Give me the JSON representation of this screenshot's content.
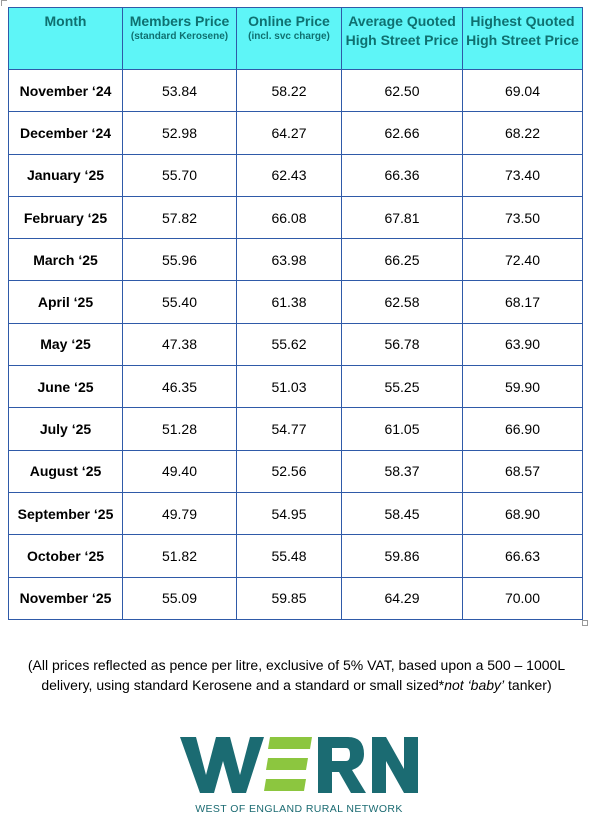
{
  "table": {
    "headers": [
      {
        "label": "Month",
        "sub": ""
      },
      {
        "label": "Members Price",
        "sub": "(standard Kerosene)"
      },
      {
        "label": "Online Price",
        "sub": "(incl. svc charge)"
      },
      {
        "label": "Average Quoted High Street Price",
        "sub": ""
      },
      {
        "label": "Highest Quoted High Street Price",
        "sub": ""
      }
    ],
    "rows": [
      {
        "month": "November ‘24",
        "members": "53.84",
        "online": "58.22",
        "average": "62.50",
        "highest": "69.04"
      },
      {
        "month": "December ‘24",
        "members": "52.98",
        "online": "64.27",
        "average": "62.66",
        "highest": "68.22"
      },
      {
        "month": "January ‘25",
        "members": "55.70",
        "online": "62.43",
        "average": "66.36",
        "highest": "73.40"
      },
      {
        "month": "February ‘25",
        "members": "57.82",
        "online": "66.08",
        "average": "67.81",
        "highest": "73.50"
      },
      {
        "month": "March ‘25",
        "members": "55.96",
        "online": "63.98",
        "average": "66.25",
        "highest": "72.40"
      },
      {
        "month": "April ‘25",
        "members": "55.40",
        "online": "61.38",
        "average": "62.58",
        "highest": "68.17"
      },
      {
        "month": "May ‘25",
        "members": "47.38",
        "online": "55.62",
        "average": "56.78",
        "highest": "63.90"
      },
      {
        "month": "June ‘25",
        "members": "46.35",
        "online": "51.03",
        "average": "55.25",
        "highest": "59.90"
      },
      {
        "month": "July ‘25",
        "members": "51.28",
        "online": "54.77",
        "average": "61.05",
        "highest": "66.90"
      },
      {
        "month": "August ‘25",
        "members": "49.40",
        "online": "52.56",
        "average": "58.37",
        "highest": "68.57"
      },
      {
        "month": "September ‘25",
        "members": "49.79",
        "online": "54.95",
        "average": "58.45",
        "highest": "68.90"
      },
      {
        "month": "October ‘25",
        "members": "51.82",
        "online": "55.48",
        "average": "59.86",
        "highest": "66.63"
      },
      {
        "month": "November ‘25",
        "members": "55.09",
        "online": "59.85",
        "average": "64.29",
        "highest": "70.00"
      }
    ]
  },
  "footnote": {
    "line1": "(All prices reflected as pence per litre, exclusive of 5% VAT, based upon a 500 – 1000L",
    "line2_before": "delivery, using standard Kerosene and a standard or small sized*",
    "line2_emph": "not ‘baby’",
    "line2_after": " tanker)"
  },
  "logo": {
    "wordmark": "WERN",
    "tagline": "WEST OF ENGLAND RURAL NETWORK",
    "colors": {
      "teal": "#1b6b72",
      "green": "#8cc63f"
    }
  },
  "colors": {
    "header_bg": "#5ef5f7",
    "header_text": "#0f7070",
    "border": "#2f5aa8"
  }
}
